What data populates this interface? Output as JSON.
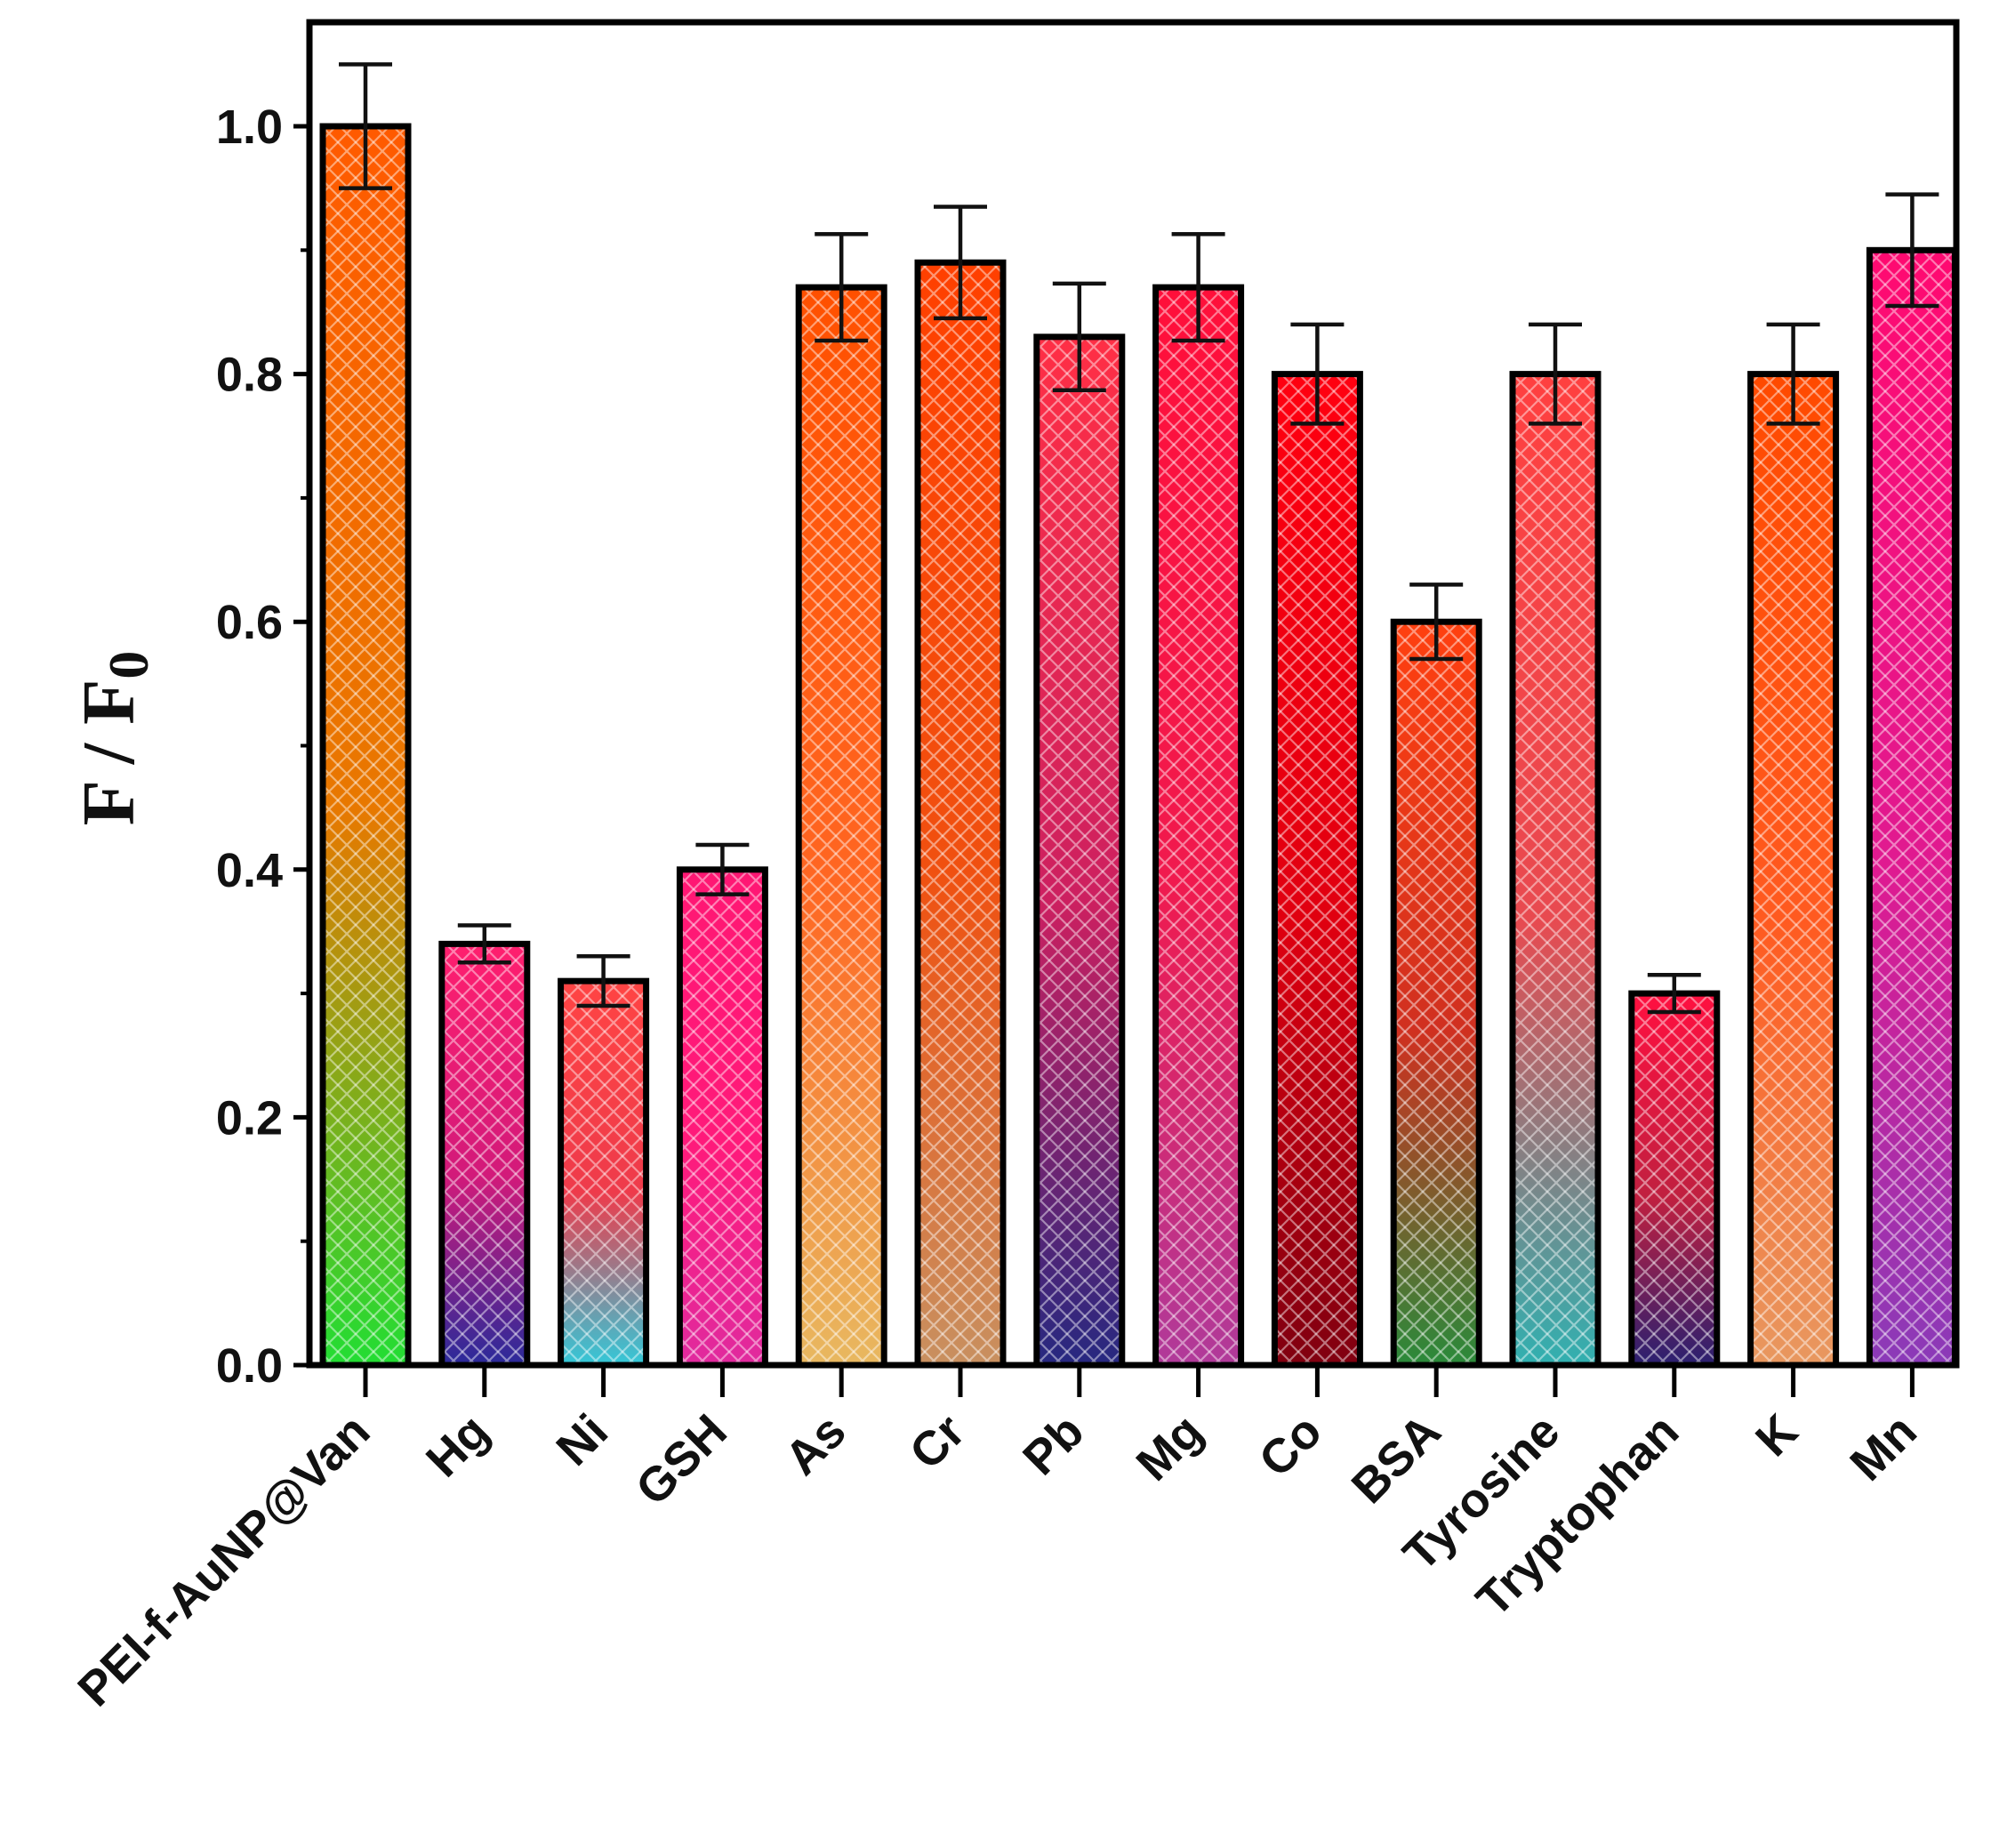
{
  "chart_data": {
    "type": "bar",
    "title": "",
    "xlabel": "",
    "ylabel": "F / F",
    "ylabel_subscript": "0",
    "ylim": [
      0.0,
      1.08
    ],
    "yticks": [
      "0.0",
      "0.2",
      "0.4",
      "0.6",
      "0.8",
      "1.0"
    ],
    "grid": false,
    "legend": "none",
    "categories": [
      "PEI-f-AuNP@Van",
      "Hg",
      "Ni",
      "GSH",
      "As",
      "Cr",
      "Pb",
      "Mg",
      "Co",
      "BSA",
      "Tyrosine",
      "Tryptophan",
      "K",
      "Mn"
    ],
    "values": [
      1.0,
      0.34,
      0.31,
      0.4,
      0.87,
      0.89,
      0.83,
      0.87,
      0.8,
      0.6,
      0.8,
      0.3,
      0.8,
      0.9
    ],
    "errors": [
      0.05,
      0.015,
      0.02,
      0.02,
      0.043,
      0.045,
      0.043,
      0.043,
      0.04,
      0.03,
      0.04,
      0.015,
      0.04,
      0.045
    ],
    "colors": [
      [
        "#ff5a00",
        "#e87800",
        "#22dd33"
      ],
      [
        "#ff1f6e",
        "#d21a7a",
        "#2a2a9a"
      ],
      [
        "#ff4444",
        "#ee3b4b",
        "#33c8d8"
      ],
      [
        "#ff1773",
        "#ff1a7a",
        "#e02a9e"
      ],
      [
        "#ff5000",
        "#ff6622",
        "#e8b860"
      ],
      [
        "#ff4000",
        "#f05010",
        "#c89060"
      ],
      [
        "#ff2f45",
        "#cc2060",
        "#262880"
      ],
      [
        "#ff0f3a",
        "#f01a4e",
        "#b03a9a"
      ],
      [
        "#ff0010",
        "#e00010",
        "#800010"
      ],
      [
        "#ff4010",
        "#d03020",
        "#2a8a3a"
      ],
      [
        "#ff4040",
        "#e84a50",
        "#30b0b0"
      ],
      [
        "#ff1040",
        "#c02040",
        "#2a2070"
      ],
      [
        "#ff4a00",
        "#ff5a20",
        "#e89860"
      ],
      [
        "#ff0a70",
        "#e01a90",
        "#8a3ab8"
      ]
    ]
  }
}
